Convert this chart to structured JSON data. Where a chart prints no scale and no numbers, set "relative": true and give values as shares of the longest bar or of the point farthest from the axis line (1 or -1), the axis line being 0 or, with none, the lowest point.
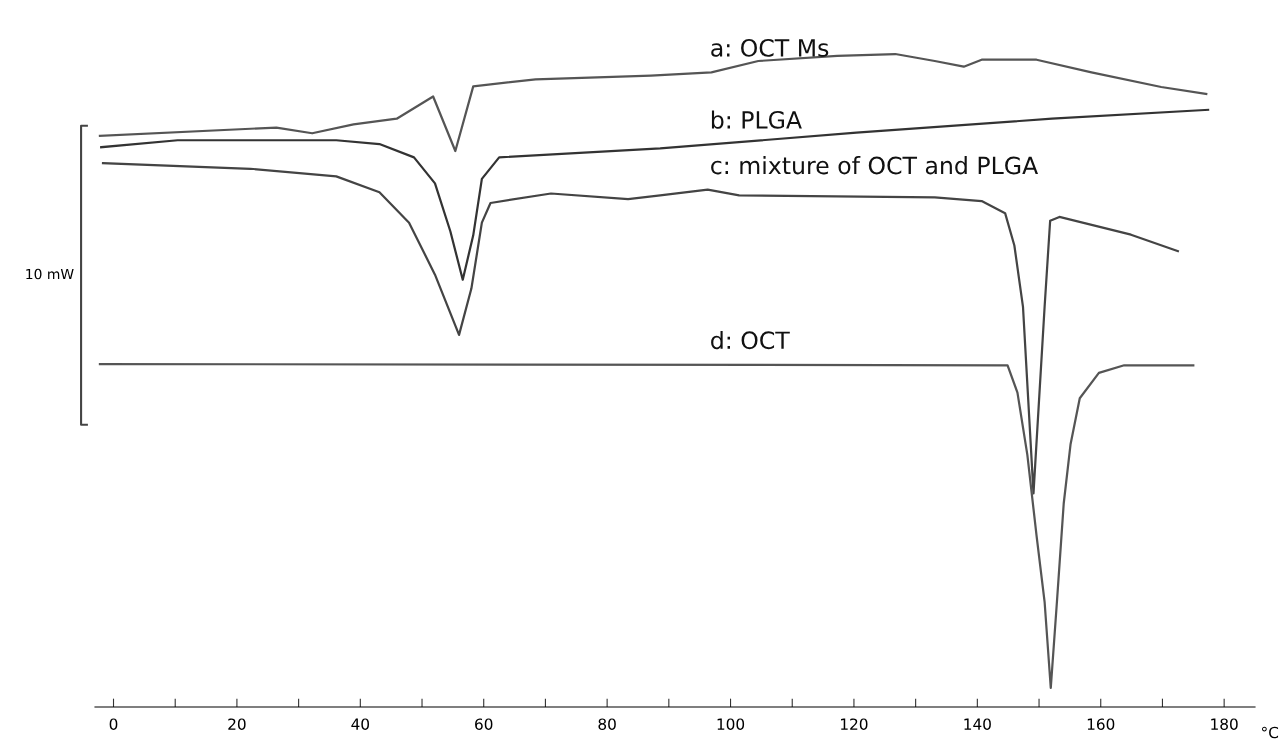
{
  "chart_data": {
    "type": "line",
    "relative": true,
    "xlabel": "°C",
    "ylabel": "10 mW",
    "xlim": [
      -3,
      185
    ],
    "xticks": [
      0,
      {
        "value": 10,
        "label": null
      },
      20,
      {
        "value": 30,
        "label": null
      },
      40,
      {
        "value": 50,
        "label": null
      },
      60,
      {
        "value": 70,
        "label": null
      },
      80,
      {
        "value": 90,
        "label": null
      },
      100,
      {
        "value": 110,
        "label": null
      },
      120,
      {
        "value": 130,
        "label": null
      },
      140,
      {
        "value": 150,
        "label": null
      },
      160,
      {
        "value": 170,
        "label": null
      },
      180
    ],
    "grid": false,
    "legend": false,
    "marker": "none",
    "line_style": "solid",
    "series": [
      {
        "name": "a: OCT Ms",
        "color": "#555555",
        "x": [
          -2.2,
          26.4,
          32.2,
          38.9,
          45.9,
          51.8,
          55.4,
          58.3,
          68.4,
          87.1,
          96.9,
          104.5,
          117.3,
          126.7,
          133.1,
          137.8,
          140.7,
          149.6,
          158.5,
          169.8,
          177.1
        ],
        "values": [
          0.871,
          0.884,
          0.875,
          0.889,
          0.898,
          0.933,
          0.847,
          0.949,
          0.96,
          0.966,
          0.971,
          0.989,
          0.997,
          1.0,
          0.989,
          0.98,
          0.991,
          0.991,
          0.971,
          0.948,
          0.937
        ]
      },
      {
        "name": "b: PLGA",
        "color": "#333333",
        "x": [
          -2,
          10.4,
          36.1,
          43.1,
          48.7,
          52.1,
          54.6,
          56.6,
          58.3,
          59.7,
          62.5,
          88.6,
          120.4,
          152.1,
          177.4
        ],
        "values": [
          0.853,
          0.864,
          0.864,
          0.858,
          0.837,
          0.796,
          0.72,
          0.644,
          0.714,
          0.803,
          0.837,
          0.851,
          0.876,
          0.898,
          0.912
        ]
      },
      {
        "name": "c: mixture of OCT and PLGA",
        "color": "#444444",
        "x": [
          -1.7,
          22.2,
          36.1,
          43.1,
          47.9,
          52.1,
          56.0,
          58.0,
          59.7,
          61.1,
          70.9,
          83.4,
          88.6,
          96.3,
          101.4,
          133.1,
          140.7,
          144.5,
          146.0,
          147.4,
          149.1,
          150.9,
          151.8,
          153.3,
          164.9,
          172.5
        ],
        "values": [
          0.828,
          0.819,
          0.807,
          0.782,
          0.734,
          0.652,
          0.557,
          0.63,
          0.734,
          0.765,
          0.78,
          0.771,
          0.777,
          0.786,
          0.777,
          0.774,
          0.768,
          0.749,
          0.698,
          0.601,
          0.307,
          0.601,
          0.737,
          0.743,
          0.715,
          0.689
        ]
      },
      {
        "name": "d: OCT",
        "color": "#555555",
        "x": [
          -2.2,
          144.9,
          146.5,
          148.1,
          149.6,
          150.9,
          151.9,
          152.9,
          154.0,
          155.1,
          156.6,
          159.7,
          163.8,
          175.0
        ],
        "values": [
          0.511,
          0.509,
          0.466,
          0.368,
          0.24,
          0.136,
          0.0,
          0.136,
          0.291,
          0.384,
          0.457,
          0.497,
          0.509,
          0.509
        ]
      }
    ]
  }
}
